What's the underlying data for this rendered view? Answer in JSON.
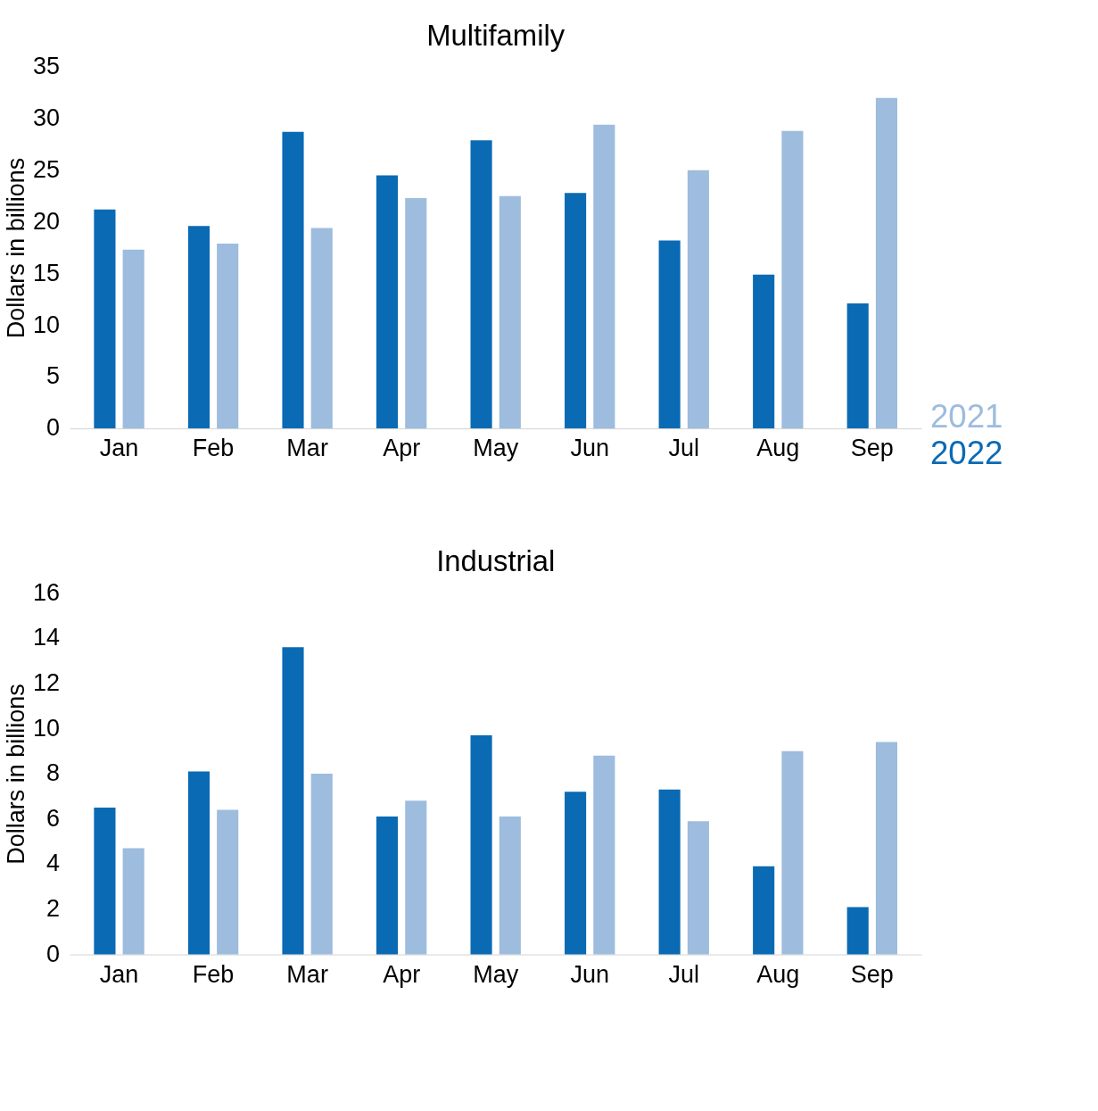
{
  "chart_data": [
    {
      "type": "bar",
      "title": "Multifamily",
      "ylabel": "Dollars in billions",
      "categories": [
        "Jan",
        "Feb",
        "Mar",
        "Apr",
        "May",
        "Jun",
        "Jul",
        "Aug",
        "Sep"
      ],
      "series": [
        {
          "name": "2022",
          "color": "#0a6ab4",
          "values": [
            21.2,
            19.6,
            28.7,
            24.5,
            27.9,
            22.8,
            18.2,
            14.9,
            12.1
          ]
        },
        {
          "name": "2021",
          "color": "#9dbcde",
          "values": [
            17.3,
            17.9,
            19.4,
            22.3,
            22.5,
            29.4,
            25.0,
            28.8,
            32.0
          ]
        }
      ],
      "ylim": [
        0,
        35
      ],
      "yticks": [
        0,
        5,
        10,
        15,
        20,
        25,
        30,
        35
      ],
      "grid": false,
      "legend": "right"
    },
    {
      "type": "bar",
      "title": "Industrial",
      "ylabel": "Dollars in billions",
      "categories": [
        "Jan",
        "Feb",
        "Mar",
        "Apr",
        "May",
        "Jun",
        "Jul",
        "Aug",
        "Sep"
      ],
      "series": [
        {
          "color": "#0a6ab4",
          "values": [
            6.5,
            8.1,
            13.6,
            6.1,
            9.7,
            7.2,
            7.3,
            3.9,
            2.1
          ]
        },
        {
          "color": "#9dbcde",
          "values": [
            4.7,
            6.4,
            8.0,
            6.8,
            6.1,
            8.8,
            5.9,
            9.0,
            9.4
          ]
        }
      ],
      "ylim": [
        0,
        16
      ],
      "yticks": [
        0,
        2,
        4,
        6,
        8,
        10,
        12,
        14,
        16
      ],
      "grid": false,
      "legend": false
    }
  ]
}
